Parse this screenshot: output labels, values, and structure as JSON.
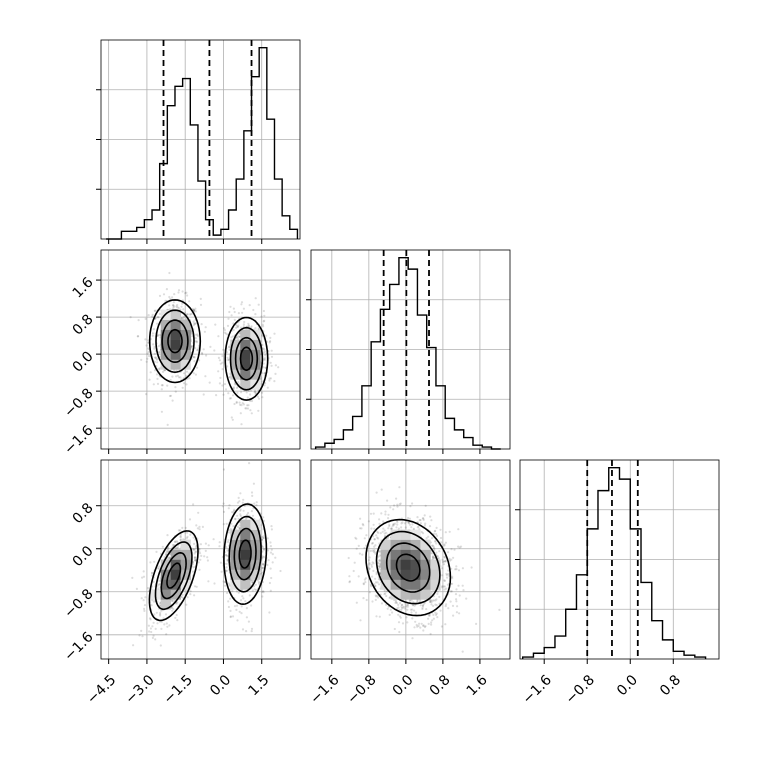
{
  "chart_data": {
    "type": "corner",
    "parameters": [
      "p0",
      "p1",
      "p2"
    ],
    "grid": true,
    "ranges": {
      "p0": [
        -4.8,
        3.0
      ],
      "p1": [
        -2.05,
        2.25
      ],
      "p2": [
        -2.05,
        1.65
      ]
    },
    "ticks": {
      "p0": [
        -4.5,
        -3.0,
        -1.5,
        0.0,
        1.5
      ],
      "p1": [
        -1.6,
        -0.8,
        0.0,
        0.8,
        1.6
      ],
      "p2": [
        -1.6,
        -0.8,
        0.0,
        0.8
      ]
    },
    "tick_labels": {
      "p0": [
        "−4.5",
        "−3.0",
        "−1.5",
        "0.0",
        "1.5"
      ],
      "p1": [
        "−1.6",
        "−0.8",
        "0.0",
        "0.8",
        "1.6"
      ],
      "p2": [
        "−1.6",
        "−0.8",
        "0.0",
        "0.8"
      ]
    },
    "histograms": [
      {
        "param": "p0",
        "bin_edges": [
          -4.6,
          -4.3,
          -4.0,
          -3.7,
          -3.4,
          -3.1,
          -2.8,
          -2.5,
          -2.2,
          -1.9,
          -1.6,
          -1.3,
          -1.0,
          -0.7,
          -0.4,
          -0.1,
          0.2,
          0.5,
          0.8,
          1.1,
          1.4,
          1.7,
          2.0,
          2.3,
          2.6,
          2.9
        ],
        "counts": [
          0,
          0,
          0.04,
          0.04,
          0.06,
          0.1,
          0.15,
          0.39,
          0.69,
          0.79,
          0.83,
          0.59,
          0.3,
          0.1,
          0.02,
          0.05,
          0.15,
          0.31,
          0.56,
          0.84,
          0.99,
          0.62,
          0.31,
          0.12,
          0.05
        ],
        "quantiles": [
          -2.35,
          -0.55,
          1.1
        ]
      },
      {
        "param": "p1",
        "bin_edges": [
          -1.95,
          -1.75,
          -1.55,
          -1.35,
          -1.15,
          -0.95,
          -0.75,
          -0.55,
          -0.35,
          -0.15,
          0.05,
          0.25,
          0.45,
          0.65,
          0.85,
          1.05,
          1.25,
          1.45,
          1.65,
          1.85,
          2.05
        ],
        "counts": [
          0.01,
          0.03,
          0.05,
          0.1,
          0.17,
          0.33,
          0.56,
          0.73,
          0.86,
          1.0,
          0.94,
          0.7,
          0.53,
          0.33,
          0.16,
          0.1,
          0.06,
          0.02,
          0.01,
          0
        ],
        "quantiles": [
          -0.48,
          0.01,
          0.5
        ]
      },
      {
        "param": "p2",
        "bin_edges": [
          -2.0,
          -1.8,
          -1.6,
          -1.4,
          -1.2,
          -1.0,
          -0.8,
          -0.6,
          -0.4,
          -0.2,
          0.0,
          0.2,
          0.4,
          0.6,
          0.8,
          1.0,
          1.2,
          1.4
        ],
        "counts": [
          0.01,
          0.03,
          0.06,
          0.12,
          0.26,
          0.44,
          0.68,
          0.88,
          1.0,
          0.94,
          0.68,
          0.4,
          0.2,
          0.1,
          0.04,
          0.02,
          0.01
        ],
        "quantiles": [
          -0.8,
          -0.34,
          0.14
        ]
      }
    ],
    "density_panels": [
      {
        "x": "p0",
        "y": "p1",
        "modes": [
          {
            "center": [
              -1.9,
              0.28
            ],
            "sigma": [
              0.5,
              0.45
            ],
            "rho": 0.0
          },
          {
            "center": [
              0.9,
              -0.1
            ],
            "sigma": [
              0.42,
              0.45
            ],
            "rho": 0.0
          }
        ]
      },
      {
        "x": "p0",
        "y": "p2",
        "modes": [
          {
            "center": [
              -1.95,
              -0.5
            ],
            "sigma": [
              0.48,
              0.42
            ],
            "rho": 0.55
          },
          {
            "center": [
              0.85,
              -0.1
            ],
            "sigma": [
              0.42,
              0.47
            ],
            "rho": 0.1
          }
        ]
      },
      {
        "x": "p1",
        "y": "p2",
        "modes": [
          {
            "center": [
              0.05,
              -0.35
            ],
            "sigma": [
              0.46,
              0.45
            ],
            "rho": -0.2
          }
        ]
      }
    ]
  }
}
